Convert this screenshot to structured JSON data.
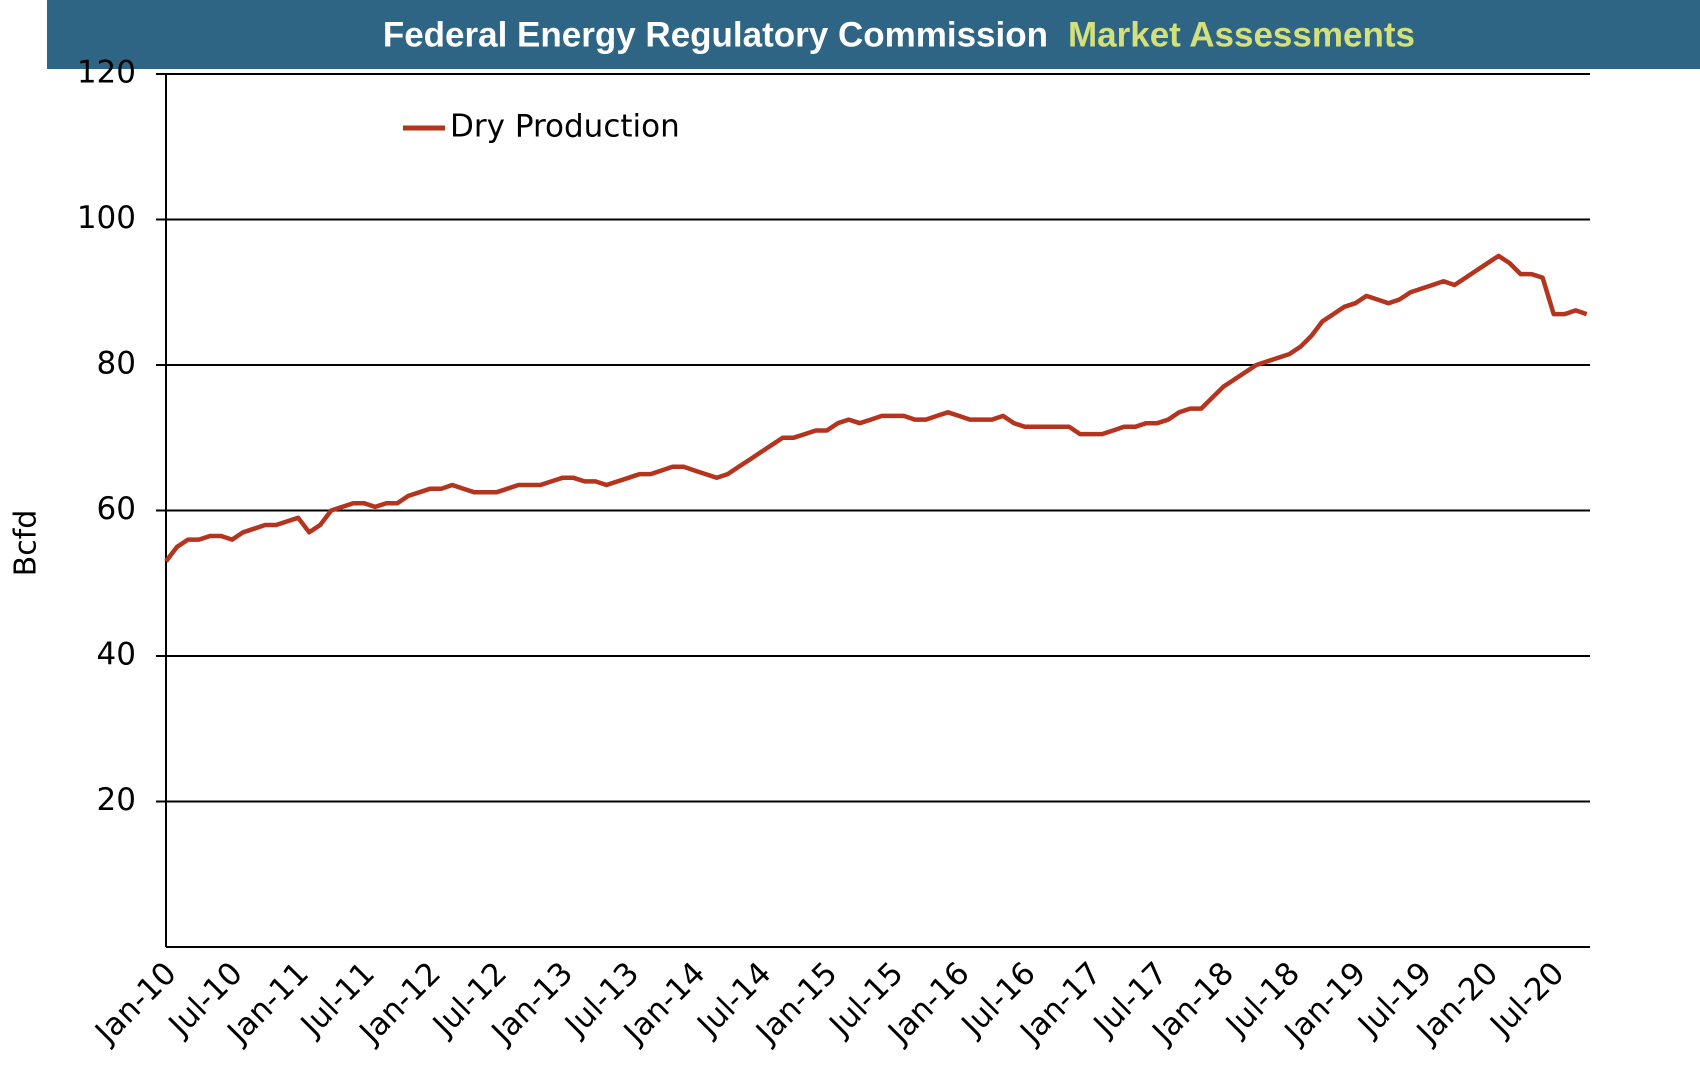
{
  "chart_data": {
    "type": "line",
    "title": "Federal Energy Regulatory Commission",
    "subtitle": "Market Assessments",
    "y_label": "Bcfd",
    "x": [
      "Jan-10",
      "Feb-10",
      "Mar-10",
      "Apr-10",
      "May-10",
      "Jun-10",
      "Jul-10",
      "Aug-10",
      "Sep-10",
      "Oct-10",
      "Nov-10",
      "Dec-10",
      "Jan-11",
      "Feb-11",
      "Mar-11",
      "Apr-11",
      "May-11",
      "Jun-11",
      "Jul-11",
      "Aug-11",
      "Sep-11",
      "Oct-11",
      "Nov-11",
      "Dec-11",
      "Jan-12",
      "Feb-12",
      "Mar-12",
      "Apr-12",
      "May-12",
      "Jun-12",
      "Jul-12",
      "Aug-12",
      "Sep-12",
      "Oct-12",
      "Nov-12",
      "Dec-12",
      "Jan-13",
      "Feb-13",
      "Mar-13",
      "Apr-13",
      "May-13",
      "Jun-13",
      "Jul-13",
      "Aug-13",
      "Sep-13",
      "Oct-13",
      "Nov-13",
      "Dec-13",
      "Jan-14",
      "Feb-14",
      "Mar-14",
      "Apr-14",
      "May-14",
      "Jun-14",
      "Jul-14",
      "Aug-14",
      "Sep-14",
      "Oct-14",
      "Nov-14",
      "Dec-14",
      "Jan-15",
      "Feb-15",
      "Mar-15",
      "Apr-15",
      "May-15",
      "Jun-15",
      "Jul-15",
      "Aug-15",
      "Sep-15",
      "Oct-15",
      "Nov-15",
      "Dec-15",
      "Jan-16",
      "Feb-16",
      "Mar-16",
      "Apr-16",
      "May-16",
      "Jun-16",
      "Jul-16",
      "Aug-16",
      "Sep-16",
      "Oct-16",
      "Nov-16",
      "Dec-16",
      "Jan-17",
      "Feb-17",
      "Mar-17",
      "Apr-17",
      "May-17",
      "Jun-17",
      "Jul-17",
      "Aug-17",
      "Sep-17",
      "Oct-17",
      "Nov-17",
      "Dec-17",
      "Jan-18",
      "Feb-18",
      "Mar-18",
      "Apr-18",
      "May-18",
      "Jun-18",
      "Jul-18",
      "Aug-18",
      "Sep-18",
      "Oct-18",
      "Nov-18",
      "Dec-18",
      "Jan-19",
      "Feb-19",
      "Mar-19",
      "Apr-19",
      "May-19",
      "Jun-19",
      "Jul-19",
      "Aug-19",
      "Sep-19",
      "Oct-19",
      "Nov-19",
      "Dec-19",
      "Jan-20",
      "Feb-20",
      "Mar-20",
      "Apr-20",
      "May-20",
      "Jun-20",
      "Jul-20",
      "Aug-20",
      "Sep-20",
      "Oct-20"
    ],
    "series": [
      {
        "name": "Dry Production",
        "color": "#b5341e",
        "values": [
          53,
          55,
          56,
          56,
          56.5,
          56.5,
          56,
          57,
          57.5,
          58,
          58,
          58.5,
          59,
          57,
          58,
          60,
          60.5,
          61,
          61,
          60.5,
          61,
          61,
          62,
          62.5,
          63,
          63,
          63.5,
          63,
          62.5,
          62.5,
          62.5,
          63,
          63.5,
          63.5,
          63.5,
          64,
          64.5,
          64.5,
          64,
          64,
          63.5,
          64,
          64.5,
          65,
          65,
          65.5,
          66,
          66,
          65.5,
          65,
          64.5,
          65,
          66,
          67,
          68,
          69,
          70,
          70,
          70.5,
          71,
          71,
          72,
          72.5,
          72,
          72.5,
          73,
          73,
          73,
          72.5,
          72.5,
          73,
          73.5,
          73,
          72.5,
          72.5,
          72.5,
          73,
          72,
          71.5,
          71.5,
          71.5,
          71.5,
          71.5,
          70.5,
          70.5,
          70.5,
          71,
          71.5,
          71.5,
          72,
          72,
          72.5,
          73.5,
          74,
          74,
          75.5,
          77,
          78,
          79,
          80,
          80.5,
          81,
          81.5,
          82.5,
          84,
          86,
          87,
          88,
          88.5,
          89.5,
          89,
          88.5,
          89,
          90,
          90.5,
          91,
          91.5,
          91,
          92,
          93,
          94,
          95,
          94,
          92.5,
          92.5,
          92,
          87,
          87,
          87.5,
          87
        ]
      }
    ],
    "xticks": [
      "Jan-10",
      "Jul-10",
      "Jan-11",
      "Jul-11",
      "Jan-12",
      "Jul-12",
      "Jan-13",
      "Jul-13",
      "Jan-14",
      "Jul-14",
      "Jan-15",
      "Jul-15",
      "Jan-16",
      "Jul-16",
      "Jan-17",
      "Jul-17",
      "Jan-18",
      "Jul-18",
      "Jan-19",
      "Jul-19",
      "Jan-20",
      "Jul-20"
    ],
    "ylim": [
      0,
      120
    ],
    "yticks": [
      20,
      40,
      60,
      80,
      100,
      120
    ],
    "grid": true,
    "legend": "top-left"
  }
}
